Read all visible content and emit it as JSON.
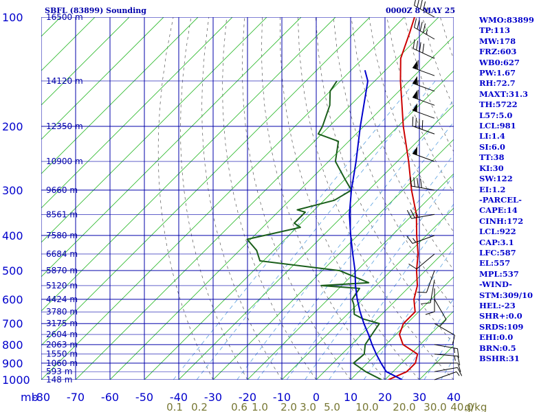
{
  "chart_data": {
    "type": "line",
    "title": "SBFL (83899) Sounding",
    "time_label": "0000Z  8 MAY 25",
    "xlim": [
      -80,
      40
    ],
    "ylim": [
      1000,
      100
    ],
    "x_ticks": [
      "-80",
      "-70",
      "-60",
      "-50",
      "-40",
      "-30",
      "-20",
      "-10",
      "0",
      "10",
      "20",
      "30",
      "40"
    ],
    "x_unit_label": "mb",
    "pressure_ticks": [
      "100",
      "200",
      "300",
      "400",
      "500",
      "600",
      "700",
      "800",
      "900",
      "1000"
    ],
    "pressure_values": [
      100,
      200,
      300,
      400,
      500,
      600,
      700,
      800,
      900,
      1000
    ],
    "height_levels": [
      {
        "p": 100,
        "label": "16500 m"
      },
      {
        "p": 150,
        "label": "14120 m"
      },
      {
        "p": 200,
        "label": "12350 m"
      },
      {
        "p": 250,
        "label": "10900 m"
      },
      {
        "p": 300,
        "label": "9660 m"
      },
      {
        "p": 350,
        "label": "8561 m"
      },
      {
        "p": 400,
        "label": "7580 m"
      },
      {
        "p": 450,
        "label": "6684 m"
      },
      {
        "p": 500,
        "label": "5870 m"
      },
      {
        "p": 550,
        "label": "5120 m"
      },
      {
        "p": 600,
        "label": "4424 m"
      },
      {
        "p": 650,
        "label": "3780 m"
      },
      {
        "p": 700,
        "label": "3175 m"
      },
      {
        "p": 750,
        "label": "2604 m"
      },
      {
        "p": 800,
        "label": "2063 m"
      },
      {
        "p": 850,
        "label": "1550 m"
      },
      {
        "p": 900,
        "label": "1060 m"
      },
      {
        "p": 950,
        "label": "593 m"
      },
      {
        "p": 1000,
        "label": "148 m"
      }
    ],
    "mixing_ratio_labels": [
      "0.1",
      "0.2",
      "0.6",
      "1.0",
      "2.0",
      "3.0",
      "5.0",
      "10.0",
      "20.0",
      "30.0",
      "40.0",
      "g/kg"
    ],
    "series": [
      {
        "color": "#cc0000",
        "points": [
          [
            1000,
            21
          ],
          [
            950,
            24
          ],
          [
            900,
            24
          ],
          [
            850,
            22
          ],
          [
            800,
            15
          ],
          [
            750,
            11
          ],
          [
            700,
            9
          ],
          [
            650,
            9
          ],
          [
            600,
            5
          ],
          [
            550,
            2
          ],
          [
            500,
            -2.6
          ],
          [
            450,
            -7
          ],
          [
            400,
            -12.8
          ],
          [
            350,
            -19
          ],
          [
            300,
            -27.5
          ],
          [
            250,
            -36.7
          ],
          [
            200,
            -48.5
          ],
          [
            150,
            -62.5
          ],
          [
            130,
            -69
          ],
          [
            110,
            -74
          ],
          [
            100,
            -77
          ]
        ]
      },
      {
        "color": "#1a5e1a",
        "points": [
          [
            1000,
            19
          ],
          [
            950,
            12
          ],
          [
            900,
            6
          ],
          [
            850,
            6.5
          ],
          [
            800,
            4
          ],
          [
            750,
            3
          ],
          [
            700,
            2
          ],
          [
            680,
            -4
          ],
          [
            660,
            -8
          ],
          [
            620,
            -11
          ],
          [
            600,
            -13
          ],
          [
            560,
            -14
          ],
          [
            550,
            -26
          ],
          [
            540,
            -13
          ],
          [
            500,
            -25
          ],
          [
            470,
            -51
          ],
          [
            440,
            -55
          ],
          [
            410,
            -61
          ],
          [
            380,
            -49
          ],
          [
            370,
            -52
          ],
          [
            345,
            -52
          ],
          [
            340,
            -55
          ],
          [
            320,
            -47
          ],
          [
            300,
            -45
          ],
          [
            280,
            -50
          ],
          [
            250,
            -58
          ],
          [
            220,
            -63
          ],
          [
            210,
            -71
          ],
          [
            200,
            -72
          ],
          [
            175,
            -76
          ],
          [
            160,
            -80
          ],
          [
            150,
            -81
          ]
        ]
      },
      {
        "color": "#0000cc",
        "points": [
          [
            1000,
            25
          ],
          [
            950,
            18
          ],
          [
            900,
            14
          ],
          [
            850,
            10
          ],
          [
            800,
            6
          ],
          [
            750,
            2
          ],
          [
            700,
            -2.5
          ],
          [
            650,
            -7
          ],
          [
            600,
            -11.5
          ],
          [
            550,
            -16
          ],
          [
            500,
            -20.5
          ],
          [
            450,
            -26
          ],
          [
            400,
            -32
          ],
          [
            350,
            -38.5
          ],
          [
            300,
            -45
          ],
          [
            250,
            -52
          ],
          [
            200,
            -61
          ],
          [
            150,
            -72
          ],
          [
            140,
            -76
          ]
        ]
      }
    ]
  },
  "sidebar_items": [
    "WMO:83899",
    "TP:113",
    "MW:178",
    "FRZ:603",
    "WB0:627",
    "PW:1.67",
    "RH:72.7",
    "MAXT:31.3",
    "TH:5722",
    "L57:5.0",
    "LCL:981",
    "LI:1.4",
    "SI:6.0",
    "TT:38",
    "KI:30",
    "SW:122",
    "EI:1.2",
    "-PARCEL-",
    "CAPE:14",
    "CINH:172",
    "LCL:922",
    "CAP:3.1",
    "LFC:587",
    "EL:557",
    "MPL:537",
    "-WIND-",
    "STM:309/10",
    "HEL:-23",
    "SHR+:0.0",
    "SRDS:109",
    "EHI:0.0",
    "BRN:0.5",
    "BSHR:31"
  ],
  "wind_barbs": [
    {
      "p": 100,
      "dir": 300,
      "spd": 45
    },
    {
      "p": 115,
      "dir": 300,
      "spd": 45
    },
    {
      "p": 130,
      "dir": 295,
      "spd": 40
    },
    {
      "p": 145,
      "dir": 290,
      "spd": 60
    },
    {
      "p": 160,
      "dir": 290,
      "spd": 55
    },
    {
      "p": 175,
      "dir": 290,
      "spd": 60
    },
    {
      "p": 190,
      "dir": 290,
      "spd": 50
    },
    {
      "p": 210,
      "dir": 290,
      "spd": 40
    },
    {
      "p": 250,
      "dir": 290,
      "spd": 50
    },
    {
      "p": 300,
      "dir": 280,
      "spd": 40
    },
    {
      "p": 350,
      "dir": 260,
      "spd": 25
    },
    {
      "p": 400,
      "dir": 250,
      "spd": 15
    },
    {
      "p": 450,
      "dir": 230,
      "spd": 10
    },
    {
      "p": 500,
      "dir": 200,
      "spd": 10
    },
    {
      "p": 530,
      "dir": 190,
      "spd": 10
    },
    {
      "p": 560,
      "dir": 180,
      "spd": 10
    },
    {
      "p": 600,
      "dir": 150,
      "spd": 10
    },
    {
      "p": 700,
      "dir": 120,
      "spd": 10
    },
    {
      "p": 800,
      "dir": 100,
      "spd": 15
    },
    {
      "p": 850,
      "dir": 95,
      "spd": 15
    },
    {
      "p": 900,
      "dir": 90,
      "spd": 10
    },
    {
      "p": 950,
      "dir": 80,
      "spd": 10
    },
    {
      "p": 1000,
      "dir": 70,
      "spd": 5
    }
  ]
}
